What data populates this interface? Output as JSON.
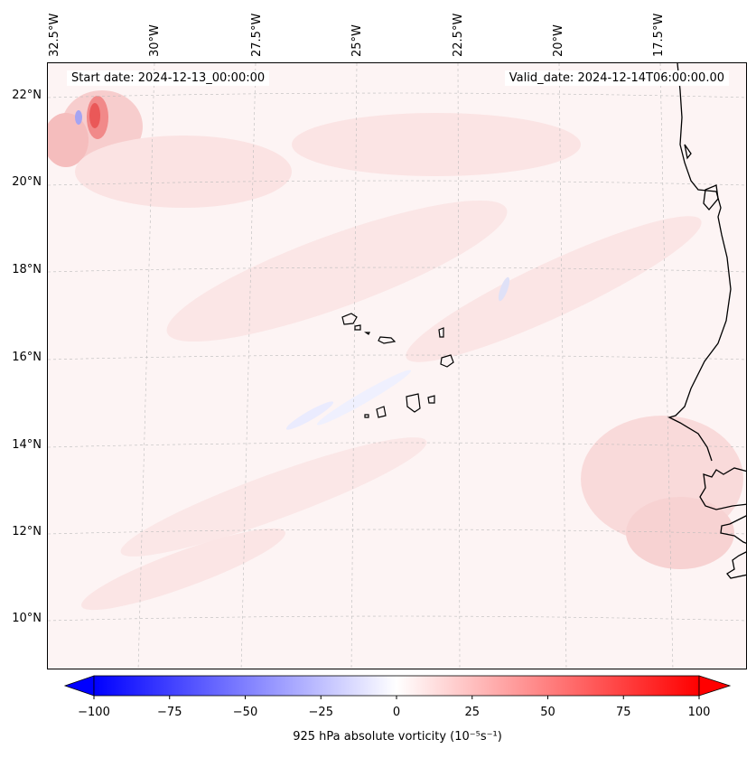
{
  "map": {
    "start_date": "Start date: 2024-12-13_00:00:00",
    "valid_date": "Valid_date: 2024-12-14T06:00:00.00",
    "longitude_labels": [
      "32.5°W",
      "30°W",
      "27.5°W",
      "25°W",
      "22.5°W",
      "20°W",
      "17.5°W"
    ],
    "latitude_labels": [
      "22°N",
      "20°N",
      "18°N",
      "16°N",
      "14°N",
      "12°N",
      "10°N"
    ],
    "features": [
      "Cabo Verde islands",
      "West African coastline",
      "vorticity field"
    ]
  },
  "colorbar": {
    "label": "925 hPa absolute vorticity (10⁻⁵s⁻¹)",
    "ticks": [
      "−100",
      "−75",
      "−50",
      "−25",
      "0",
      "25",
      "50",
      "75",
      "100"
    ],
    "min": -100,
    "max": 100,
    "colors": {
      "low": "#0000ff",
      "mid": "#ffffff",
      "high": "#ff0000"
    }
  }
}
